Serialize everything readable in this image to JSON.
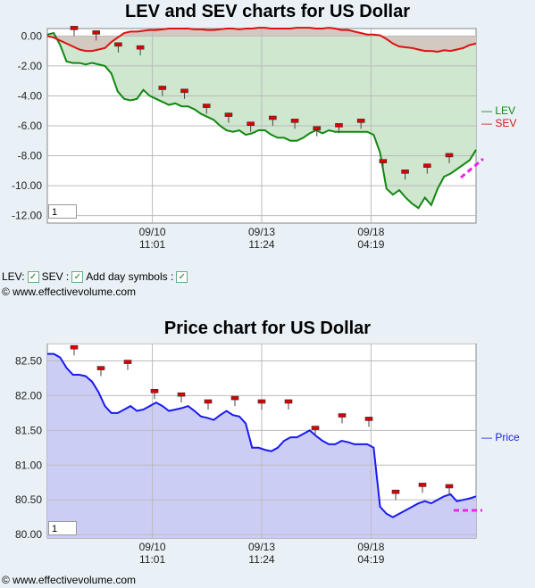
{
  "chart_data": [
    {
      "type": "line",
      "title": "LEV and SEV charts for US Dollar",
      "yticks": [
        "0.00",
        "-2.00",
        "-4.00",
        "-6.00",
        "-8.00",
        "-10.00",
        "-12.00"
      ],
      "ylim": [
        -12.5,
        0.5
      ],
      "xticks": [
        {
          "date": "09/10",
          "time": "11:01",
          "x": 0.245
        },
        {
          "date": "09/13",
          "time": "11:24",
          "x": 0.5
        },
        {
          "date": "09/18",
          "time": "04:19",
          "x": 0.755
        }
      ],
      "grid": true,
      "legend_position": "right",
      "series": [
        {
          "name": "LEV",
          "color": "#118811",
          "values": [
            0.1,
            0.2,
            -0.6,
            -1.7,
            -1.8,
            -1.8,
            -1.9,
            -1.8,
            -1.9,
            -2.0,
            -2.5,
            -3.7,
            -4.2,
            -4.3,
            -4.2,
            -3.6,
            -4.0,
            -4.2,
            -4.4,
            -4.6,
            -4.5,
            -4.7,
            -4.7,
            -4.9,
            -5.2,
            -5.4,
            -5.6,
            -6.0,
            -6.3,
            -6.4,
            -6.3,
            -6.6,
            -6.5,
            -6.3,
            -6.3,
            -6.6,
            -6.8,
            -6.8,
            -7.0,
            -7.0,
            -6.8,
            -6.5,
            -6.3,
            -6.5,
            -6.3,
            -6.4,
            -6.4,
            -6.4,
            -6.4,
            -6.4,
            -6.4,
            -6.6,
            -7.8,
            -10.2,
            -10.6,
            -10.3,
            -10.8,
            -11.2,
            -11.5,
            -10.8,
            -11.3,
            -10.2,
            -9.4,
            -9.2,
            -8.9,
            -8.6,
            -8.3,
            -7.6
          ]
        },
        {
          "name": "SEV",
          "color": "#dd1111",
          "values": [
            0.0,
            -0.1,
            -0.3,
            -0.5,
            -0.7,
            -0.9,
            -1.0,
            -1.0,
            -0.9,
            -0.8,
            -0.4,
            -0.1,
            0.2,
            0.3,
            0.3,
            0.35,
            0.4,
            0.4,
            0.45,
            0.5,
            0.5,
            0.5,
            0.5,
            0.45,
            0.45,
            0.4,
            0.4,
            0.45,
            0.5,
            0.5,
            0.45,
            0.5,
            0.5,
            0.55,
            0.55,
            0.5,
            0.5,
            0.5,
            0.5,
            0.55,
            0.55,
            0.55,
            0.5,
            0.5,
            0.55,
            0.5,
            0.4,
            0.4,
            0.3,
            0.2,
            0.1,
            0.1,
            0.05,
            -0.2,
            -0.5,
            -0.7,
            -0.75,
            -0.8,
            -0.9,
            -1.0,
            -1.0,
            -1.05,
            -0.95,
            -1.0,
            -0.9,
            -0.8,
            -0.6,
            -0.5
          ]
        }
      ],
      "annotation_values": [
        0.0,
        -0.3,
        -1.1,
        -1.3,
        -4.0,
        -4.2,
        -5.2,
        -5.8,
        -6.4,
        -6.0,
        -6.2,
        -6.7,
        -6.5,
        -6.2,
        -8.9,
        -9.6,
        -9.2,
        -8.5
      ]
    },
    {
      "type": "line",
      "title": "Price chart for US Dollar",
      "yticks": [
        "82.50",
        "82.00",
        "81.50",
        "81.00",
        "80.50",
        "80.00"
      ],
      "ylim": [
        79.95,
        82.75
      ],
      "xticks": [
        {
          "date": "09/10",
          "time": "11:01",
          "x": 0.245
        },
        {
          "date": "09/13",
          "time": "11:24",
          "x": 0.5
        },
        {
          "date": "09/18",
          "time": "04:19",
          "x": 0.755
        }
      ],
      "grid": true,
      "legend_position": "right",
      "series": [
        {
          "name": "Price",
          "color": "#1a1aee",
          "values": [
            82.6,
            82.6,
            82.55,
            82.4,
            82.3,
            82.3,
            82.28,
            82.2,
            82.05,
            81.85,
            81.75,
            81.75,
            81.8,
            81.85,
            81.78,
            81.8,
            81.85,
            81.9,
            81.85,
            81.78,
            81.8,
            81.82,
            81.85,
            81.78,
            81.7,
            81.68,
            81.65,
            81.72,
            81.78,
            81.72,
            81.7,
            81.6,
            81.25,
            81.25,
            81.22,
            81.2,
            81.25,
            81.35,
            81.4,
            81.4,
            81.45,
            81.5,
            81.42,
            81.35,
            81.3,
            81.3,
            81.35,
            81.33,
            81.3,
            81.3,
            81.3,
            81.25,
            80.4,
            80.3,
            80.25,
            80.3,
            80.35,
            80.4,
            80.45,
            80.48,
            80.45,
            80.5,
            80.55,
            80.58,
            80.48,
            80.5,
            80.52,
            80.55
          ]
        }
      ],
      "annotation_values": [
        82.58,
        82.28,
        82.37,
        81.95,
        81.9,
        81.8,
        81.85,
        81.8,
        81.8,
        81.42,
        81.6,
        81.55,
        80.5,
        80.6,
        80.58
      ]
    }
  ],
  "legend": {
    "lev": "LEV",
    "sev": "SEV",
    "price": "Price"
  },
  "controls": {
    "lev": "LEV:",
    "sev": "SEV :",
    "day": "Add day symbols :"
  },
  "site_text": "© www.effectivevolume.com",
  "zoom_value": "1"
}
